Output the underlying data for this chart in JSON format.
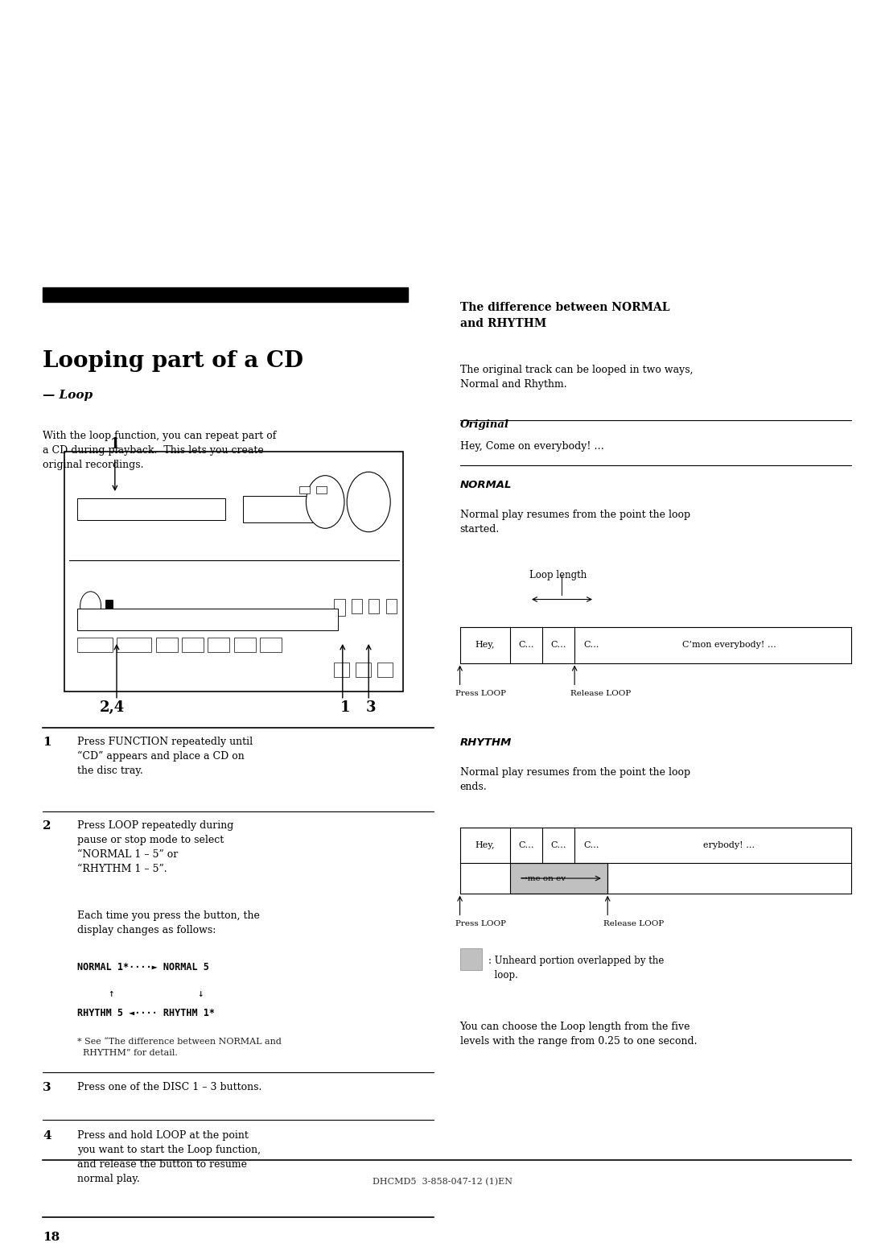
{
  "bg_color": "#ffffff",
  "text_color": "#000000",
  "page_width": 10.8,
  "page_height": 15.28,
  "title": "Looping part of a CD",
  "subtitle": "— Loop",
  "intro_text": "With the loop function, you can repeat part of\na CD during playback.  This lets you create\noriginal recordings.",
  "right_heading": "The difference between NORMAL\nand RHYTHM",
  "right_intro": "The original track can be looped in two ways,\nNormal and Rhythm.",
  "original_label": "Original",
  "original_text": "Hey, Come on everybody! …",
  "normal_label": "NORMAL",
  "normal_desc": "Normal play resumes from the point the loop\nstarted.",
  "normal_loop_label": "Loop length",
  "normal_cells": [
    "Hey,",
    "C…",
    "C…",
    "C…",
    "C’mon everybody! …"
  ],
  "normal_press": "Press LOOP",
  "normal_release": "Release LOOP",
  "rhythm_label": "RHYTHM",
  "rhythm_desc": "Normal play resumes from the point the loop\nends.",
  "rhythm_cells": [
    "Hey,",
    "C…",
    "C…",
    "C…",
    "erybody! …"
  ],
  "rhythm_sub": "→me on ev",
  "rhythm_press": "Press LOOP",
  "rhythm_release": "Release LOOP",
  "legend_text": ": Unheard portion overlapped by the\n  loop.",
  "footnote": "You can choose the Loop length from the five\nlevels with the range from 0.25 to one second.",
  "step1_num": "1",
  "step1_text": "Press FUNCTION repeatedly until\n“CD” appears and place a CD on\nthe disc tray.",
  "step2_num": "2",
  "step2_text": "Press LOOP repeatedly during\npause or stop mode to select\n“NORMAL 1 – 5” or\n“RHYTHM 1 – 5”.",
  "step2_sub": "Each time you press the button, the\ndisplay changes as follows:",
  "step2_diagram": "NORMAL 1*····► NORMAL 5\n        ↑                    ↓\nRHYTHM 5 ◄···· RHYTHM 1*",
  "step2_note": "* See “The difference between NORMAL and\n  RHYTHM” for detail.",
  "step3_num": "3",
  "step3_text": "Press one of the DISC 1 – 3 buttons.",
  "step4_num": "4",
  "step4_text": "Press and hold LOOP at the point\nyou want to start the Loop function,\nand release the button to resume\nnormal play.",
  "page_number": "18",
  "footer": "DHCMD5  3-858-047-12 (1)EN",
  "gray_color": "#c0c0c0"
}
